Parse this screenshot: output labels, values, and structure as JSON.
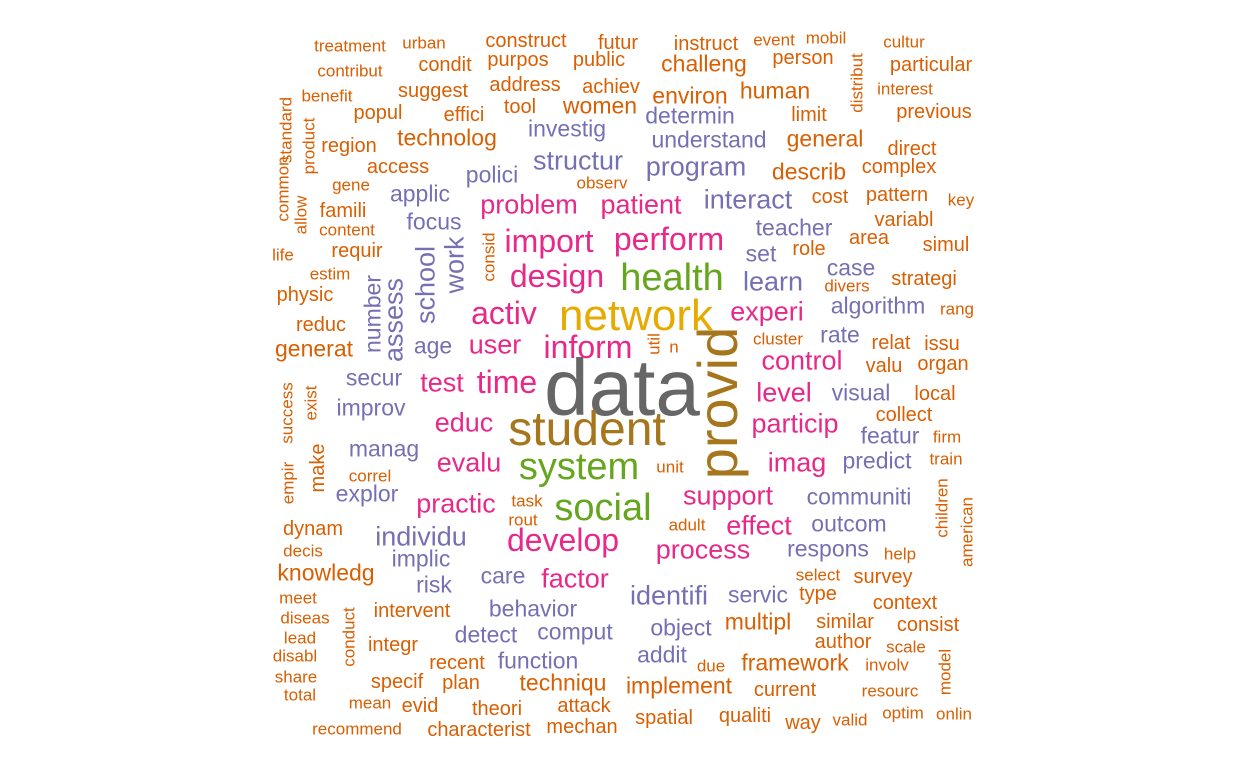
{
  "colors": {
    "orange": "#D95F02",
    "purple": "#7570B3",
    "magenta": "#E7298A",
    "green": "#66A61E",
    "gold": "#E6AB02",
    "brown": "#A6761D",
    "gray": "#666666"
  },
  "words": [
    {
      "text": "data",
      "color": "gray",
      "weight": 10
    },
    {
      "text": "student",
      "color": "brown",
      "weight": 8
    },
    {
      "text": "provid",
      "color": "brown",
      "weight": 8,
      "vertical": true
    },
    {
      "text": "network",
      "color": "gold",
      "weight": 7
    },
    {
      "text": "health",
      "color": "green",
      "weight": 6
    },
    {
      "text": "system",
      "color": "green",
      "weight": 6
    },
    {
      "text": "social",
      "color": "green",
      "weight": 6
    },
    {
      "text": "inform",
      "color": "magenta",
      "weight": 5
    },
    {
      "text": "develop",
      "color": "magenta",
      "weight": 5
    },
    {
      "text": "design",
      "color": "magenta",
      "weight": 5
    },
    {
      "text": "activ",
      "color": "magenta",
      "weight": 5
    },
    {
      "text": "time",
      "color": "magenta",
      "weight": 5
    },
    {
      "text": "perform",
      "color": "magenta",
      "weight": 5
    },
    {
      "text": "import",
      "color": "magenta",
      "weight": 5
    },
    {
      "text": "experi",
      "color": "magenta",
      "weight": 4
    },
    {
      "text": "user",
      "color": "magenta",
      "weight": 4
    },
    {
      "text": "support",
      "color": "magenta",
      "weight": 4
    },
    {
      "text": "process",
      "color": "magenta",
      "weight": 4
    },
    {
      "text": "particip",
      "color": "magenta",
      "weight": 4
    },
    {
      "text": "patient",
      "color": "magenta",
      "weight": 4
    },
    {
      "text": "problem",
      "color": "magenta",
      "weight": 4
    },
    {
      "text": "educ",
      "color": "magenta",
      "weight": 4
    },
    {
      "text": "evalu",
      "color": "magenta",
      "weight": 4
    },
    {
      "text": "test",
      "color": "magenta",
      "weight": 4
    },
    {
      "text": "practic",
      "color": "magenta",
      "weight": 4
    },
    {
      "text": "factor",
      "color": "magenta",
      "weight": 4
    },
    {
      "text": "level",
      "color": "magenta",
      "weight": 4
    },
    {
      "text": "control",
      "color": "magenta",
      "weight": 4
    },
    {
      "text": "imag",
      "color": "magenta",
      "weight": 4
    },
    {
      "text": "effect",
      "color": "magenta",
      "weight": 4
    },
    {
      "text": "interact",
      "color": "purple",
      "weight": 4
    },
    {
      "text": "program",
      "color": "purple",
      "weight": 4
    },
    {
      "text": "structur",
      "color": "purple",
      "weight": 4
    },
    {
      "text": "learn",
      "color": "purple",
      "weight": 4
    },
    {
      "text": "school",
      "color": "purple",
      "weight": 4,
      "vertical": true
    },
    {
      "text": "work",
      "color": "purple",
      "weight": 4,
      "vertical": true
    },
    {
      "text": "assess",
      "color": "purple",
      "weight": 4,
      "vertical": true
    },
    {
      "text": "identifi",
      "color": "purple",
      "weight": 4
    },
    {
      "text": "individu",
      "color": "purple",
      "weight": 4
    },
    {
      "text": "understand",
      "color": "purple",
      "weight": 3
    },
    {
      "text": "investig",
      "color": "purple",
      "weight": 3
    },
    {
      "text": "determin",
      "color": "purple",
      "weight": 3
    },
    {
      "text": "teacher",
      "color": "purple",
      "weight": 3
    },
    {
      "text": "set",
      "color": "purple",
      "weight": 3
    },
    {
      "text": "algorithm",
      "color": "purple",
      "weight": 3
    },
    {
      "text": "rate",
      "color": "purple",
      "weight": 3
    },
    {
      "text": "visual",
      "color": "purple",
      "weight": 3
    },
    {
      "text": "communiti",
      "color": "purple",
      "weight": 3
    },
    {
      "text": "outcom",
      "color": "purple",
      "weight": 3
    },
    {
      "text": "respons",
      "color": "purple",
      "weight": 3
    },
    {
      "text": "predict",
      "color": "purple",
      "weight": 3
    },
    {
      "text": "featur",
      "color": "purple",
      "weight": 3
    },
    {
      "text": "case",
      "color": "purple",
      "weight": 3
    },
    {
      "text": "behavior",
      "color": "purple",
      "weight": 3
    },
    {
      "text": "comput",
      "color": "purple",
      "weight": 3
    },
    {
      "text": "object",
      "color": "purple",
      "weight": 3
    },
    {
      "text": "detect",
      "color": "purple",
      "weight": 3
    },
    {
      "text": "function",
      "color": "purple",
      "weight": 3
    },
    {
      "text": "care",
      "color": "purple",
      "weight": 3
    },
    {
      "text": "servic",
      "color": "purple",
      "weight": 3
    },
    {
      "text": "addit",
      "color": "purple",
      "weight": 3
    },
    {
      "text": "manag",
      "color": "purple",
      "weight": 3
    },
    {
      "text": "improv",
      "color": "purple",
      "weight": 3
    },
    {
      "text": "age",
      "color": "purple",
      "weight": 3
    },
    {
      "text": "secur",
      "color": "purple",
      "weight": 3
    },
    {
      "text": "explor",
      "color": "purple",
      "weight": 3
    },
    {
      "text": "implic",
      "color": "purple",
      "weight": 3
    },
    {
      "text": "risk",
      "color": "purple",
      "weight": 3
    },
    {
      "text": "focus",
      "color": "purple",
      "weight": 3
    },
    {
      "text": "applic",
      "color": "purple",
      "weight": 3
    },
    {
      "text": "polici",
      "color": "purple",
      "weight": 3
    },
    {
      "text": "number",
      "color": "purple",
      "weight": 3,
      "vertical": true
    },
    {
      "text": "describ",
      "color": "orange",
      "weight": 3
    },
    {
      "text": "general",
      "color": "orange",
      "weight": 3
    },
    {
      "text": "human",
      "color": "orange",
      "weight": 3
    },
    {
      "text": "environ",
      "color": "orange",
      "weight": 3
    },
    {
      "text": "women",
      "color": "orange",
      "weight": 3
    },
    {
      "text": "challeng",
      "color": "orange",
      "weight": 3
    },
    {
      "text": "technolog",
      "color": "orange",
      "weight": 3
    },
    {
      "text": "implement",
      "color": "orange",
      "weight": 3
    },
    {
      "text": "techniqu",
      "color": "orange",
      "weight": 3
    },
    {
      "text": "framework",
      "color": "orange",
      "weight": 3
    },
    {
      "text": "multipl",
      "color": "orange",
      "weight": 3
    },
    {
      "text": "generat",
      "color": "orange",
      "weight": 3
    },
    {
      "text": "knowledg",
      "color": "orange",
      "weight": 3
    },
    {
      "text": "qualiti",
      "color": "orange",
      "weight": 2
    },
    {
      "text": "spatial",
      "color": "orange",
      "weight": 2
    },
    {
      "text": "current",
      "color": "orange",
      "weight": 2
    },
    {
      "text": "mechan",
      "color": "orange",
      "weight": 2
    },
    {
      "text": "characterist",
      "color": "orange",
      "weight": 2
    },
    {
      "text": "theori",
      "color": "orange",
      "weight": 2
    },
    {
      "text": "attack",
      "color": "orange",
      "weight": 2
    },
    {
      "text": "plan",
      "color": "orange",
      "weight": 2
    },
    {
      "text": "recent",
      "color": "orange",
      "weight": 2
    },
    {
      "text": "specif",
      "color": "orange",
      "weight": 2
    },
    {
      "text": "integr",
      "color": "orange",
      "weight": 2
    },
    {
      "text": "intervent",
      "color": "orange",
      "weight": 2
    },
    {
      "text": "evid",
      "color": "orange",
      "weight": 2
    },
    {
      "text": "mean",
      "color": "orange",
      "weight": 1
    },
    {
      "text": "recommend",
      "color": "orange",
      "weight": 1
    },
    {
      "text": "way",
      "color": "orange",
      "weight": 2
    },
    {
      "text": "valid",
      "color": "orange",
      "weight": 1
    },
    {
      "text": "optim",
      "color": "orange",
      "weight": 1
    },
    {
      "text": "onlin",
      "color": "orange",
      "weight": 1
    },
    {
      "text": "resourc",
      "color": "orange",
      "weight": 1
    },
    {
      "text": "similar",
      "color": "orange",
      "weight": 2
    },
    {
      "text": "type",
      "color": "orange",
      "weight": 2
    },
    {
      "text": "author",
      "color": "orange",
      "weight": 2
    },
    {
      "text": "involv",
      "color": "orange",
      "weight": 1
    },
    {
      "text": "due",
      "color": "orange",
      "weight": 1
    },
    {
      "text": "consist",
      "color": "orange",
      "weight": 2
    },
    {
      "text": "scale",
      "color": "orange",
      "weight": 1
    },
    {
      "text": "context",
      "color": "orange",
      "weight": 2
    },
    {
      "text": "select",
      "color": "orange",
      "weight": 1
    },
    {
      "text": "survey",
      "color": "orange",
      "weight": 2
    },
    {
      "text": "help",
      "color": "orange",
      "weight": 1
    },
    {
      "text": "unit",
      "color": "orange",
      "weight": 1
    },
    {
      "text": "task",
      "color": "orange",
      "weight": 1
    },
    {
      "text": "rout",
      "color": "orange",
      "weight": 1
    },
    {
      "text": "adult",
      "color": "orange",
      "weight": 1
    },
    {
      "text": "train",
      "color": "orange",
      "weight": 1
    },
    {
      "text": "firm",
      "color": "orange",
      "weight": 1
    },
    {
      "text": "collect",
      "color": "orange",
      "weight": 2
    },
    {
      "text": "local",
      "color": "orange",
      "weight": 2
    },
    {
      "text": "organ",
      "color": "orange",
      "weight": 2
    },
    {
      "text": "issu",
      "color": "orange",
      "weight": 2
    },
    {
      "text": "relat",
      "color": "orange",
      "weight": 2
    },
    {
      "text": "valu",
      "color": "orange",
      "weight": 2
    },
    {
      "text": "cluster",
      "color": "orange",
      "weight": 1
    },
    {
      "text": "rang",
      "color": "orange",
      "weight": 1
    },
    {
      "text": "strategi",
      "color": "orange",
      "weight": 2
    },
    {
      "text": "divers",
      "color": "orange",
      "weight": 1
    },
    {
      "text": "simul",
      "color": "orange",
      "weight": 2
    },
    {
      "text": "area",
      "color": "orange",
      "weight": 2
    },
    {
      "text": "role",
      "color": "orange",
      "weight": 2
    },
    {
      "text": "variabl",
      "color": "orange",
      "weight": 2
    },
    {
      "text": "key",
      "color": "orange",
      "weight": 1
    },
    {
      "text": "pattern",
      "color": "orange",
      "weight": 2
    },
    {
      "text": "cost",
      "color": "orange",
      "weight": 2
    },
    {
      "text": "complex",
      "color": "orange",
      "weight": 2
    },
    {
      "text": "direct",
      "color": "orange",
      "weight": 2
    },
    {
      "text": "limit",
      "color": "orange",
      "weight": 2
    },
    {
      "text": "previous",
      "color": "orange",
      "weight": 2
    },
    {
      "text": "interest",
      "color": "orange",
      "weight": 1
    },
    {
      "text": "particular",
      "color": "orange",
      "weight": 2
    },
    {
      "text": "cultur",
      "color": "orange",
      "weight": 1
    },
    {
      "text": "person",
      "color": "orange",
      "weight": 2
    },
    {
      "text": "event",
      "color": "orange",
      "weight": 1
    },
    {
      "text": "mobil",
      "color": "orange",
      "weight": 1
    },
    {
      "text": "instruct",
      "color": "orange",
      "weight": 2
    },
    {
      "text": "futur",
      "color": "orange",
      "weight": 2
    },
    {
      "text": "construct",
      "color": "orange",
      "weight": 2
    },
    {
      "text": "purpos",
      "color": "orange",
      "weight": 2
    },
    {
      "text": "public",
      "color": "orange",
      "weight": 2
    },
    {
      "text": "achiev",
      "color": "orange",
      "weight": 2
    },
    {
      "text": "address",
      "color": "orange",
      "weight": 2
    },
    {
      "text": "condit",
      "color": "orange",
      "weight": 2
    },
    {
      "text": "urban",
      "color": "orange",
      "weight": 1
    },
    {
      "text": "treatment",
      "color": "orange",
      "weight": 1
    },
    {
      "text": "contribut",
      "color": "orange",
      "weight": 1
    },
    {
      "text": "benefit",
      "color": "orange",
      "weight": 1
    },
    {
      "text": "suggest",
      "color": "orange",
      "weight": 2
    },
    {
      "text": "popul",
      "color": "orange",
      "weight": 2
    },
    {
      "text": "effici",
      "color": "orange",
      "weight": 2
    },
    {
      "text": "tool",
      "color": "orange",
      "weight": 2
    },
    {
      "text": "region",
      "color": "orange",
      "weight": 2
    },
    {
      "text": "access",
      "color": "orange",
      "weight": 2
    },
    {
      "text": "observ",
      "color": "orange",
      "weight": 1
    },
    {
      "text": "gene",
      "color": "orange",
      "weight": 1
    },
    {
      "text": "famili",
      "color": "orange",
      "weight": 2
    },
    {
      "text": "content",
      "color": "orange",
      "weight": 1
    },
    {
      "text": "requir",
      "color": "orange",
      "weight": 2
    },
    {
      "text": "estim",
      "color": "orange",
      "weight": 1
    },
    {
      "text": "physic",
      "color": "orange",
      "weight": 2
    },
    {
      "text": "reduc",
      "color": "orange",
      "weight": 2
    },
    {
      "text": "life",
      "color": "orange",
      "weight": 1
    },
    {
      "text": "correl",
      "color": "orange",
      "weight": 1
    },
    {
      "text": "dynam",
      "color": "orange",
      "weight": 2
    },
    {
      "text": "decis",
      "color": "orange",
      "weight": 1
    },
    {
      "text": "meet",
      "color": "orange",
      "weight": 1
    },
    {
      "text": "diseas",
      "color": "orange",
      "weight": 1
    },
    {
      "text": "lead",
      "color": "orange",
      "weight": 1
    },
    {
      "text": "disabl",
      "color": "orange",
      "weight": 1
    },
    {
      "text": "share",
      "color": "orange",
      "weight": 1
    },
    {
      "text": "total",
      "color": "orange",
      "weight": 1
    },
    {
      "text": "n",
      "color": "orange",
      "weight": 1
    },
    {
      "text": "consid",
      "color": "orange",
      "weight": 1,
      "vertical": true
    },
    {
      "text": "util",
      "color": "orange",
      "weight": 1,
      "vertical": true
    },
    {
      "text": "standard",
      "color": "orange",
      "weight": 1,
      "vertical": true
    },
    {
      "text": "common",
      "color": "orange",
      "weight": 1,
      "vertical": true
    },
    {
      "text": "allow",
      "color": "orange",
      "weight": 1,
      "vertical": true
    },
    {
      "text": "product",
      "color": "orange",
      "weight": 1,
      "vertical": true
    },
    {
      "text": "distribut",
      "color": "orange",
      "weight": 1,
      "vertical": true
    },
    {
      "text": "success",
      "color": "orange",
      "weight": 1,
      "vertical": true
    },
    {
      "text": "exist",
      "color": "orange",
      "weight": 1,
      "vertical": true
    },
    {
      "text": "make",
      "color": "orange",
      "weight": 2,
      "vertical": true
    },
    {
      "text": "empir",
      "color": "orange",
      "weight": 1,
      "vertical": true
    },
    {
      "text": "conduct",
      "color": "orange",
      "weight": 1,
      "vertical": true
    },
    {
      "text": "children",
      "color": "orange",
      "weight": 1,
      "vertical": true
    },
    {
      "text": "american",
      "color": "orange",
      "weight": 1,
      "vertical": true
    },
    {
      "text": "model",
      "color": "orange",
      "weight": 1,
      "vertical": true
    }
  ]
}
